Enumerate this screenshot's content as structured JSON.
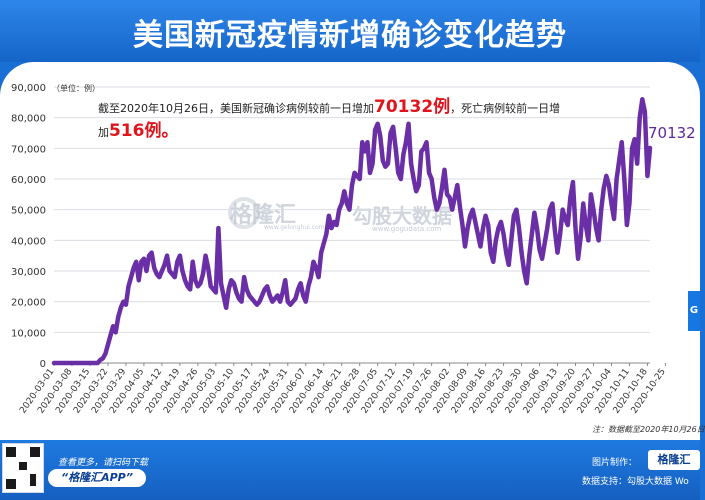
{
  "header": {
    "title": "美国新冠疫情新增确诊变化趋势"
  },
  "annotation": {
    "part1": "截至2020年10月26日，美国新冠确诊病例较前一日增加",
    "cases": "70132例",
    "part2": "，死亡病例较前一日增加",
    "deaths": "516例。"
  },
  "footer": {
    "left_line1": "查看更多，请扫码下载",
    "left_line2": "“格隆汇APP”",
    "right_line1": "图片制作：",
    "right_line2": "数据支持：勾股大数据 Wo",
    "badge": "格隆汇",
    "corner": "G"
  },
  "watermarks": {
    "brand1": "格隆汇",
    "brand1_url": "www.gelonghui.com",
    "brand2": "勾股大数据",
    "brand2_url": "www.gogudata.com"
  },
  "colors": {
    "line": "#6a2fa6",
    "grid": "#d9dde3",
    "accent_red": "#e0141c",
    "header": "#1a6fd4"
  },
  "chart_data": {
    "type": "line",
    "title": "美国新冠疫情新增确诊变化趋势",
    "unit_label": "（单位：例）",
    "note": "注：数据截至2020年10月26日",
    "ylim": [
      0,
      90000
    ],
    "yticks": [
      0,
      10000,
      20000,
      30000,
      40000,
      50000,
      60000,
      70000,
      80000,
      90000
    ],
    "ytick_labels": [
      "0",
      "10,000",
      "20,000",
      "30,000",
      "40,000",
      "50,000",
      "60,000",
      "70,000",
      "80,000",
      "90,000"
    ],
    "xtick_labels": [
      "2020-03-01",
      "2020-03-08",
      "2020-03-15",
      "2020-03-22",
      "2020-03-29",
      "2020-04-05",
      "2020-04-12",
      "2020-04-19",
      "2020-04-26",
      "2020-05-03",
      "2020-05-10",
      "2020-05-17",
      "2020-05-24",
      "2020-05-31",
      "2020-06-07",
      "2020-06-14",
      "2020-06-21",
      "2020-06-28",
      "2020-07-05",
      "2020-07-12",
      "2020-07-19",
      "2020-07-26",
      "2020-08-02",
      "2020-08-09",
      "2020-08-16",
      "2020-08-23",
      "2020-08-30",
      "2020-09-06",
      "2020-09-13",
      "2020-09-20",
      "2020-09-27",
      "2020-10-04",
      "2020-10-11",
      "2020-10-18",
      "2020-10-25"
    ],
    "start_date": "2020-03-01",
    "series": [
      {
        "name": "新增确诊",
        "values": [
          0,
          0,
          0,
          0,
          0,
          0,
          0,
          0,
          0,
          0,
          0,
          0,
          0,
          0,
          0,
          0,
          0,
          0,
          1000,
          1500,
          3000,
          6000,
          9000,
          12000,
          10000,
          15000,
          18000,
          20000,
          19000,
          25000,
          28000,
          31000,
          33000,
          27000,
          33000,
          34000,
          30000,
          35000,
          36000,
          31000,
          29000,
          28000,
          30000,
          32000,
          35000,
          30000,
          29000,
          28000,
          33000,
          35000,
          30000,
          27000,
          25000,
          24000,
          33000,
          27000,
          25000,
          26000,
          29000,
          35000,
          31000,
          25000,
          24000,
          23000,
          44000,
          26000,
          22000,
          18000,
          24000,
          27000,
          26000,
          23000,
          21000,
          20000,
          28000,
          24000,
          22000,
          21000,
          20000,
          19000,
          20000,
          22000,
          24000,
          25000,
          22000,
          20000,
          21000,
          22000,
          20000,
          23000,
          27000,
          20000,
          19000,
          20000,
          21000,
          24000,
          26000,
          22000,
          20000,
          25000,
          28000,
          33000,
          31000,
          28000,
          36000,
          39000,
          42000,
          48000,
          44000,
          46000,
          45000,
          50000,
          52000,
          56000,
          52000,
          50000,
          58000,
          62000,
          61000,
          60000,
          72000,
          69000,
          72000,
          62000,
          65000,
          76000,
          78000,
          74000,
          66000,
          64000,
          65000,
          75000,
          77000,
          70000,
          62000,
          60000,
          68000,
          72000,
          78000,
          65000,
          60000,
          56000,
          58000,
          69000,
          70000,
          72000,
          62000,
          60000,
          54000,
          50000,
          52000,
          57000,
          63000,
          55000,
          54000,
          50000,
          54000,
          58000,
          51000,
          45000,
          38000,
          44000,
          48000,
          50000,
          46000,
          42000,
          38000,
          44000,
          48000,
          45000,
          36000,
          33000,
          40000,
          44000,
          46000,
          42000,
          36000,
          32000,
          40000,
          48000,
          50000,
          44000,
          36000,
          30000,
          26000,
          35000,
          42000,
          49000,
          44000,
          37000,
          34000,
          39000,
          44000,
          50000,
          52000,
          43000,
          36000,
          42000,
          50000,
          47000,
          45000,
          54000,
          59000,
          44000,
          34000,
          41000,
          52000,
          45000,
          40000,
          55000,
          50000,
          44000,
          40000,
          50000,
          57000,
          61000,
          58000,
          52000,
          47000,
          60000,
          66000,
          72000,
          60000,
          45000,
          52000,
          70000,
          73000,
          65000,
          80000,
          86000,
          82000,
          61000,
          70132
        ]
      }
    ]
  }
}
